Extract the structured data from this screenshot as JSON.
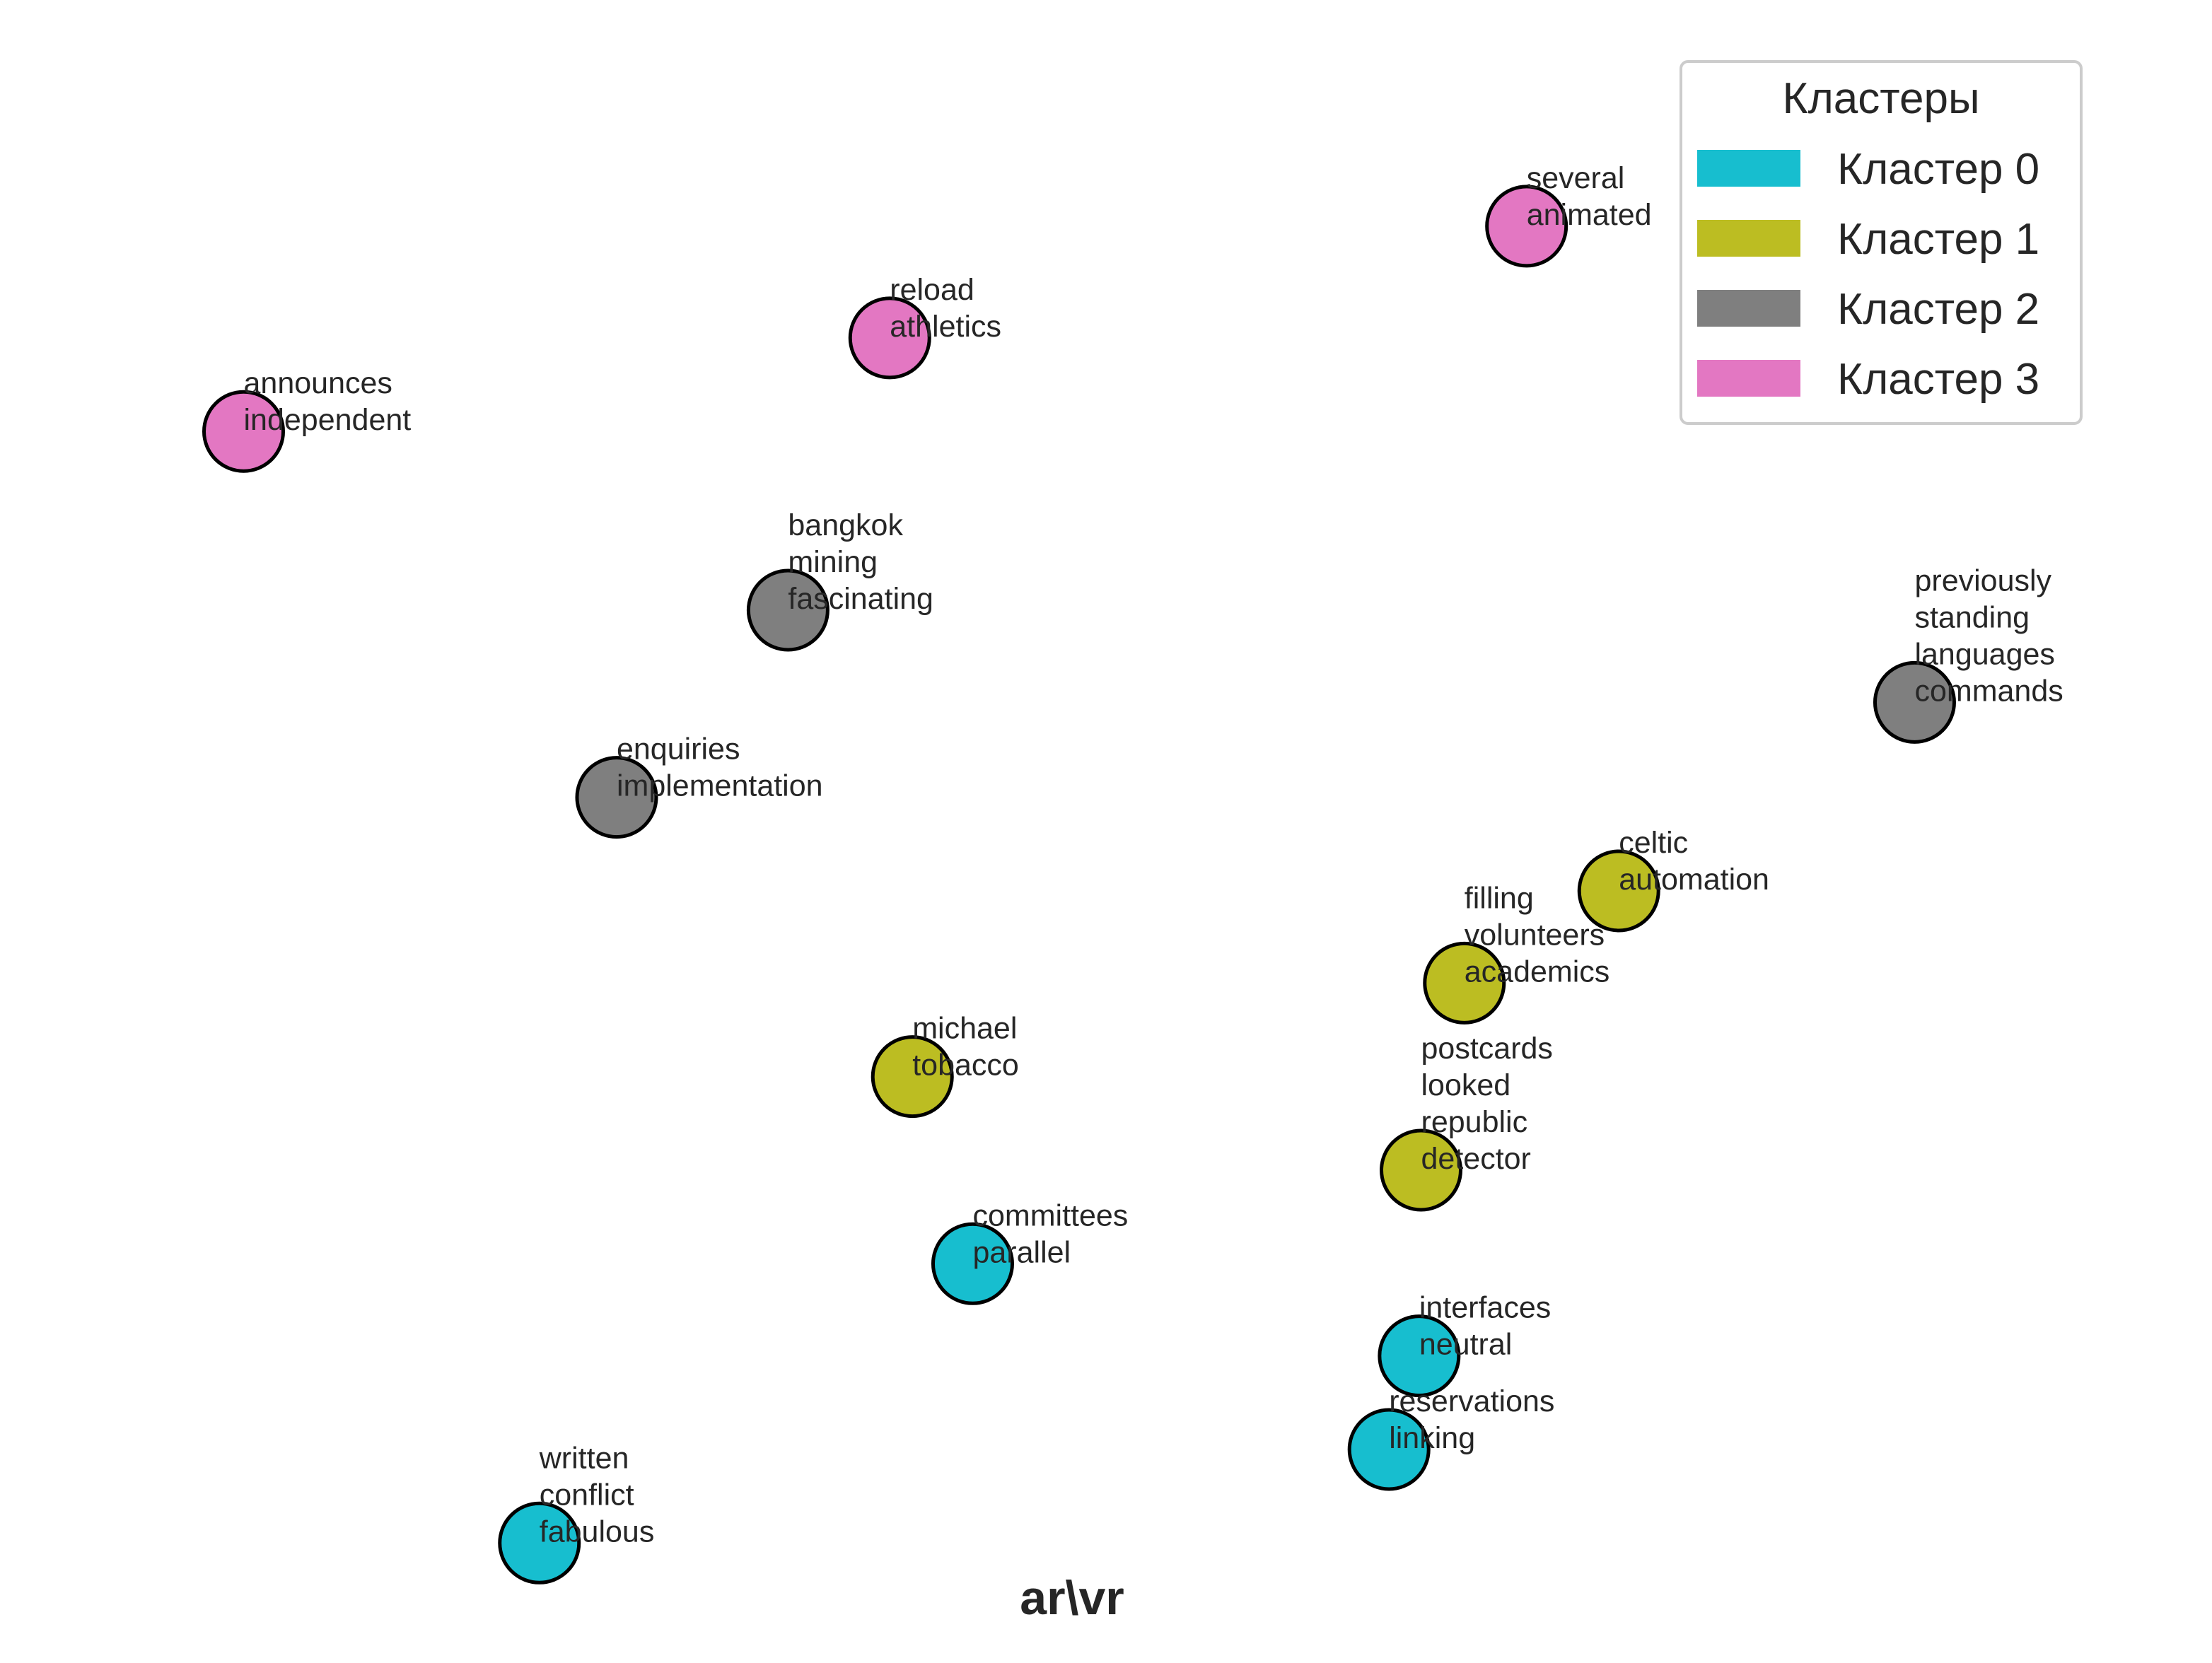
{
  "chart_data": {
    "type": "scatter",
    "title": "ar\\vr",
    "xlabel": "",
    "ylabel": "",
    "grid": false,
    "axes_visible": false,
    "xlim": [
      0,
      100
    ],
    "ylim": [
      0,
      100
    ],
    "legend": {
      "title": "Кластеры",
      "placement": "top-right",
      "entries": [
        {
          "label": "Кластер 0",
          "color": "#17becf"
        },
        {
          "label": "Кластер 1",
          "color": "#bcbd22"
        },
        {
          "label": "Кластер 2",
          "color": "#7f7f7f"
        },
        {
          "label": "Кластер 3",
          "color": "#e377c2"
        }
      ]
    },
    "points": [
      {
        "x": 74.2,
        "y": 91.5,
        "cluster": 3,
        "words": [
          "several",
          "animated"
        ]
      },
      {
        "x": 40.4,
        "y": 83.5,
        "cluster": 3,
        "words": [
          "reload",
          "athletics"
        ]
      },
      {
        "x": 6.1,
        "y": 76.8,
        "cluster": 3,
        "words": [
          "announces",
          "independent"
        ]
      },
      {
        "x": 35.0,
        "y": 64.0,
        "cluster": 2,
        "words": [
          "bangkok",
          "mining",
          "fascinating"
        ]
      },
      {
        "x": 94.8,
        "y": 57.4,
        "cluster": 2,
        "words": [
          "previously",
          "standing",
          "languages",
          "commands"
        ]
      },
      {
        "x": 25.9,
        "y": 50.6,
        "cluster": 2,
        "words": [
          "enquiries",
          "implementation"
        ]
      },
      {
        "x": 79.1,
        "y": 43.9,
        "cluster": 1,
        "words": [
          "celtic",
          "automation"
        ]
      },
      {
        "x": 70.9,
        "y": 37.3,
        "cluster": 1,
        "words": [
          "filling",
          "volunteers",
          "academics"
        ]
      },
      {
        "x": 41.6,
        "y": 30.6,
        "cluster": 1,
        "words": [
          "michael",
          "tobacco"
        ]
      },
      {
        "x": 68.6,
        "y": 23.9,
        "cluster": 1,
        "words": [
          "postcards",
          "looked",
          "republic",
          "detector"
        ]
      },
      {
        "x": 44.8,
        "y": 17.2,
        "cluster": 0,
        "words": [
          "committees",
          "parallel"
        ]
      },
      {
        "x": 68.5,
        "y": 10.6,
        "cluster": 0,
        "words": [
          "interfaces",
          "neutral"
        ]
      },
      {
        "x": 66.9,
        "y": 3.9,
        "cluster": 0,
        "words": [
          "reservations",
          "linking"
        ]
      },
      {
        "x": 21.8,
        "y": -2.8,
        "cluster": 0,
        "words": [
          "written",
          "conflict",
          "fabulous"
        ]
      }
    ]
  }
}
